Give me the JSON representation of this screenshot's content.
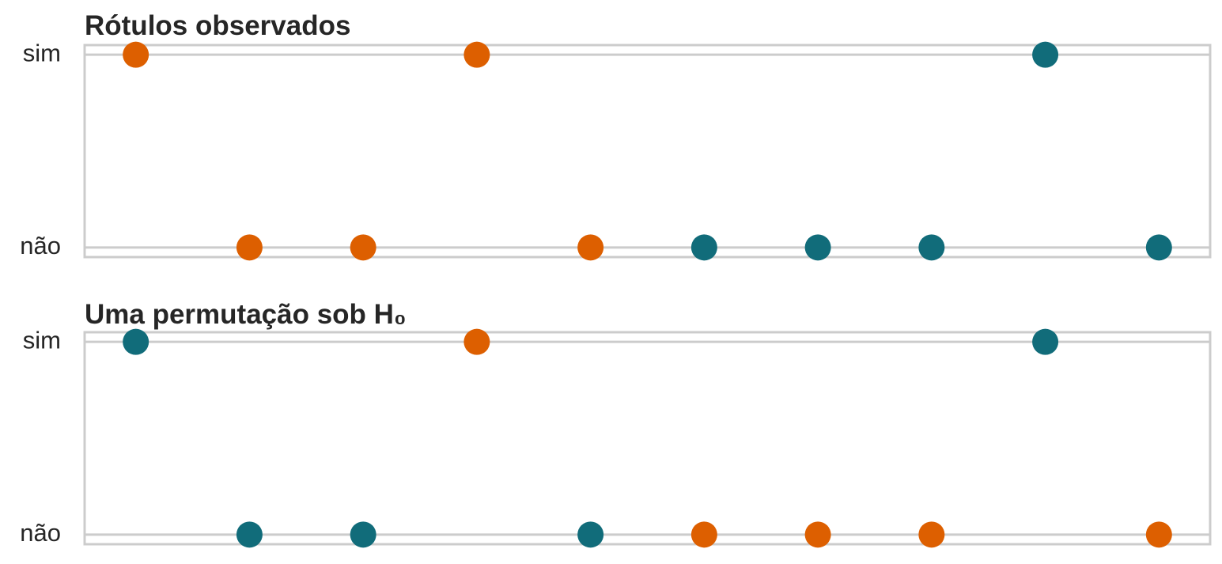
{
  "chart_data": [
    {
      "type": "scatter",
      "title": "Rótulos observados",
      "x": [
        0,
        1,
        2,
        3,
        4,
        5,
        6,
        7,
        8,
        9
      ],
      "values": [
        1,
        0,
        0,
        1,
        0,
        0,
        0,
        0,
        1,
        0
      ],
      "colors": [
        "#dd5f00",
        "#dd5f00",
        "#dd5f00",
        "#dd5f00",
        "#dd5f00",
        "#116c7a",
        "#116c7a",
        "#116c7a",
        "#116c7a",
        "#116c7a"
      ],
      "xlim": [
        -0.45,
        9.45
      ],
      "ylim": [
        -0.05,
        1.05
      ],
      "yticks": [
        {
          "value": 0,
          "label": "não"
        },
        {
          "value": 1,
          "label": "sim"
        }
      ],
      "grid": true
    },
    {
      "type": "scatter",
      "title": "Uma permutação sob H₀",
      "x": [
        0,
        1,
        2,
        3,
        4,
        5,
        6,
        7,
        8,
        9
      ],
      "values": [
        1,
        0,
        0,
        1,
        0,
        0,
        0,
        0,
        1,
        0
      ],
      "colors": [
        "#116c7a",
        "#116c7a",
        "#116c7a",
        "#dd5f00",
        "#116c7a",
        "#dd5f00",
        "#dd5f00",
        "#dd5f00",
        "#116c7a",
        "#dd5f00"
      ],
      "xlim": [
        -0.45,
        9.45
      ],
      "ylim": [
        -0.05,
        1.05
      ],
      "yticks": [
        {
          "value": 0,
          "label": "não"
        },
        {
          "value": 1,
          "label": "sim"
        }
      ],
      "grid": true
    }
  ]
}
